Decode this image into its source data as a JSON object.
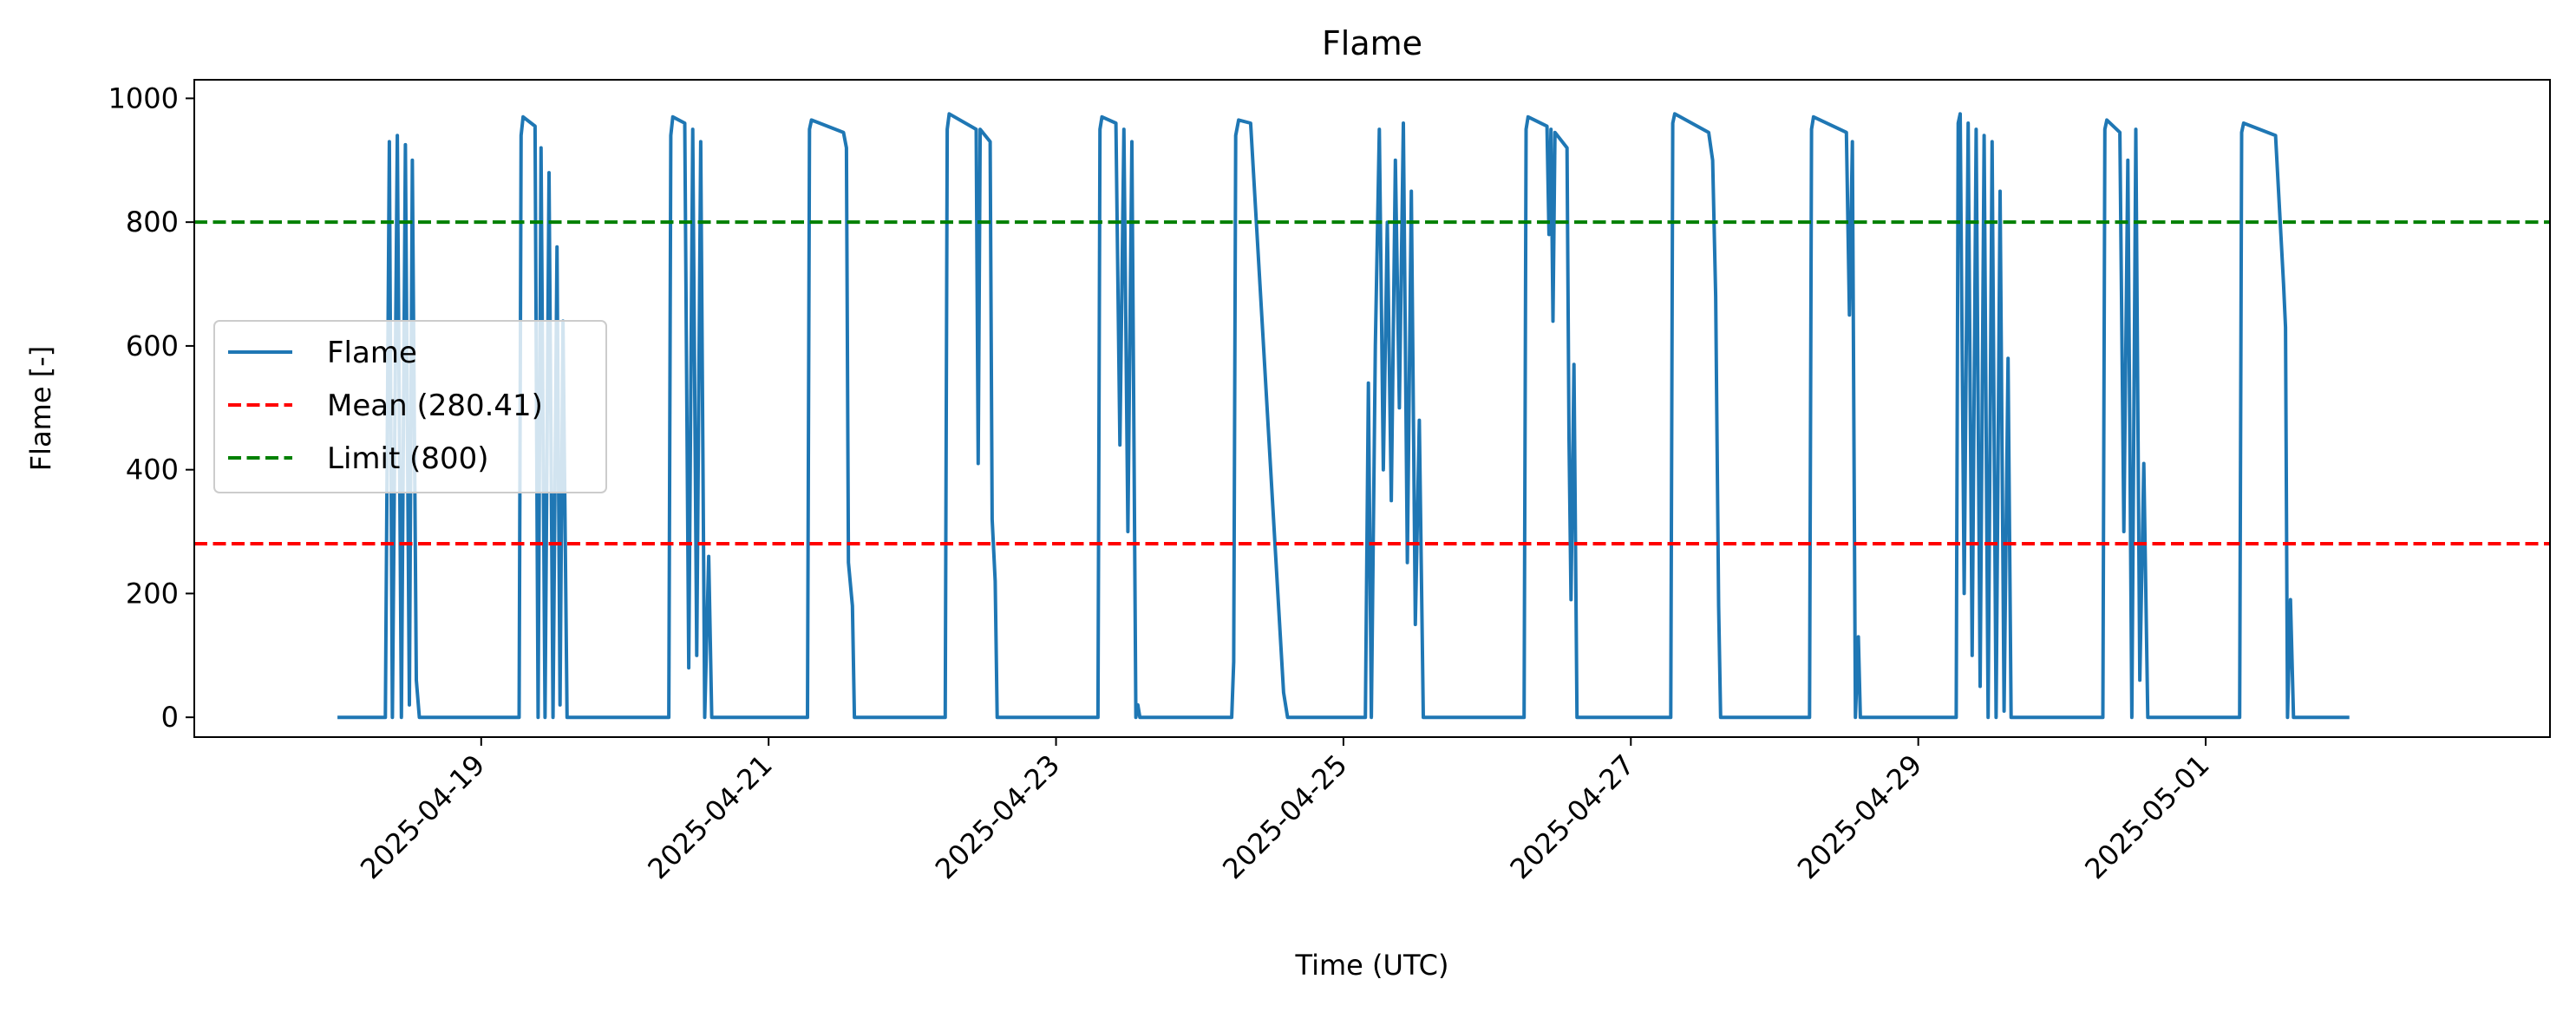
{
  "chart_data": {
    "type": "line",
    "title": "Flame",
    "xlabel": "Time (UTC)",
    "ylabel": "Flame [-]",
    "xlim": [
      "2025-04-17T00:05:00Z",
      "2025-05-03T09:30:00Z"
    ],
    "ylim": [
      -32,
      1030
    ],
    "x_ticks": [
      "2025-04-19",
      "2025-04-21",
      "2025-04-23",
      "2025-04-25",
      "2025-04-27",
      "2025-04-29",
      "2025-05-01"
    ],
    "y_ticks": [
      0,
      200,
      400,
      600,
      800,
      1000
    ],
    "grid": false,
    "legend_position": "center-left",
    "colors": {
      "flame": "#1f77b4",
      "mean": "#ff0000",
      "limit": "#008000"
    },
    "series": [
      {
        "name": "Flame",
        "style": "solid",
        "points": [
          [
            "2025-04-18T00:00:00Z",
            0
          ],
          [
            "2025-04-18T08:00:00Z",
            0
          ],
          [
            "2025-04-18T08:40:00Z",
            930
          ],
          [
            "2025-04-18T09:10:00Z",
            0
          ],
          [
            "2025-04-18T10:00:00Z",
            940
          ],
          [
            "2025-04-18T10:40:00Z",
            0
          ],
          [
            "2025-04-18T11:20:00Z",
            925
          ],
          [
            "2025-04-18T12:00:00Z",
            20
          ],
          [
            "2025-04-18T12:30:00Z",
            900
          ],
          [
            "2025-04-18T13:10:00Z",
            60
          ],
          [
            "2025-04-18T13:40:00Z",
            0
          ],
          [
            "2025-04-19T06:20:00Z",
            0
          ],
          [
            "2025-04-19T06:40:00Z",
            940
          ],
          [
            "2025-04-19T07:00:00Z",
            970
          ],
          [
            "2025-04-19T09:00:00Z",
            955
          ],
          [
            "2025-04-19T09:30:00Z",
            0
          ],
          [
            "2025-04-19T10:00:00Z",
            920
          ],
          [
            "2025-04-19T10:40:00Z",
            0
          ],
          [
            "2025-04-19T11:20:00Z",
            880
          ],
          [
            "2025-04-19T12:00:00Z",
            0
          ],
          [
            "2025-04-19T12:40:00Z",
            760
          ],
          [
            "2025-04-19T13:10:00Z",
            20
          ],
          [
            "2025-04-19T13:40:00Z",
            640
          ],
          [
            "2025-04-19T14:20:00Z",
            0
          ],
          [
            "2025-04-20T07:20:00Z",
            0
          ],
          [
            "2025-04-20T07:40:00Z",
            940
          ],
          [
            "2025-04-20T08:00:00Z",
            970
          ],
          [
            "2025-04-20T10:00:00Z",
            960
          ],
          [
            "2025-04-20T10:40:00Z",
            80
          ],
          [
            "2025-04-20T11:20:00Z",
            950
          ],
          [
            "2025-04-20T12:00:00Z",
            100
          ],
          [
            "2025-04-20T12:40:00Z",
            930
          ],
          [
            "2025-04-20T13:20:00Z",
            0
          ],
          [
            "2025-04-20T14:00:00Z",
            260
          ],
          [
            "2025-04-20T14:30:00Z",
            0
          ],
          [
            "2025-04-21T06:30:00Z",
            0
          ],
          [
            "2025-04-21T06:50:00Z",
            950
          ],
          [
            "2025-04-21T07:10:00Z",
            965
          ],
          [
            "2025-04-21T12:30:00Z",
            945
          ],
          [
            "2025-04-21T13:00:00Z",
            920
          ],
          [
            "2025-04-21T13:20:00Z",
            250
          ],
          [
            "2025-04-21T14:00:00Z",
            180
          ],
          [
            "2025-04-21T14:20:00Z",
            0
          ],
          [
            "2025-04-22T05:30:00Z",
            0
          ],
          [
            "2025-04-22T05:50:00Z",
            950
          ],
          [
            "2025-04-22T06:10:00Z",
            975
          ],
          [
            "2025-04-22T10:40:00Z",
            950
          ],
          [
            "2025-04-22T11:00:00Z",
            410
          ],
          [
            "2025-04-22T11:20:00Z",
            950
          ],
          [
            "2025-04-22T13:00:00Z",
            930
          ],
          [
            "2025-04-22T13:20:00Z",
            320
          ],
          [
            "2025-04-22T13:50:00Z",
            220
          ],
          [
            "2025-04-22T14:10:00Z",
            0
          ],
          [
            "2025-04-23T07:00:00Z",
            0
          ],
          [
            "2025-04-23T07:20:00Z",
            950
          ],
          [
            "2025-04-23T07:40:00Z",
            970
          ],
          [
            "2025-04-23T10:00:00Z",
            960
          ],
          [
            "2025-04-23T10:40:00Z",
            440
          ],
          [
            "2025-04-23T11:20:00Z",
            950
          ],
          [
            "2025-04-23T12:00:00Z",
            300
          ],
          [
            "2025-04-23T12:40:00Z",
            930
          ],
          [
            "2025-04-23T13:20:00Z",
            0
          ],
          [
            "2025-04-23T13:40:00Z",
            20
          ],
          [
            "2025-04-23T14:00:00Z",
            0
          ],
          [
            "2025-04-24T05:20:00Z",
            0
          ],
          [
            "2025-04-24T05:40:00Z",
            90
          ],
          [
            "2025-04-24T06:00:00Z",
            940
          ],
          [
            "2025-04-24T06:30:00Z",
            965
          ],
          [
            "2025-04-24T08:30:00Z",
            960
          ],
          [
            "2025-04-24T14:00:00Z",
            40
          ],
          [
            "2025-04-24T14:40:00Z",
            0
          ],
          [
            "2025-04-25T03:40:00Z",
            0
          ],
          [
            "2025-04-25T04:10:00Z",
            540
          ],
          [
            "2025-04-25T04:40:00Z",
            0
          ],
          [
            "2025-04-25T05:20:00Z",
            600
          ],
          [
            "2025-04-25T06:00:00Z",
            950
          ],
          [
            "2025-04-25T06:40:00Z",
            400
          ],
          [
            "2025-04-25T07:20:00Z",
            800
          ],
          [
            "2025-04-25T08:00:00Z",
            350
          ],
          [
            "2025-04-25T08:40:00Z",
            900
          ],
          [
            "2025-04-25T09:20:00Z",
            500
          ],
          [
            "2025-04-25T10:00:00Z",
            960
          ],
          [
            "2025-04-25T10:40:00Z",
            250
          ],
          [
            "2025-04-25T11:20:00Z",
            850
          ],
          [
            "2025-04-25T12:00:00Z",
            150
          ],
          [
            "2025-04-25T12:40:00Z",
            480
          ],
          [
            "2025-04-25T13:20:00Z",
            0
          ],
          [
            "2025-04-26T06:10:00Z",
            0
          ],
          [
            "2025-04-26T06:30:00Z",
            950
          ],
          [
            "2025-04-26T06:50:00Z",
            970
          ],
          [
            "2025-04-26T10:00:00Z",
            955
          ],
          [
            "2025-04-26T10:20:00Z",
            780
          ],
          [
            "2025-04-26T10:40:00Z",
            950
          ],
          [
            "2025-04-26T11:00:00Z",
            640
          ],
          [
            "2025-04-26T11:20:00Z",
            945
          ],
          [
            "2025-04-26T13:20:00Z",
            920
          ],
          [
            "2025-04-26T13:40:00Z",
            450
          ],
          [
            "2025-04-26T14:00:00Z",
            190
          ],
          [
            "2025-04-26T14:30:00Z",
            570
          ],
          [
            "2025-04-26T15:00:00Z",
            0
          ],
          [
            "2025-04-27T06:40:00Z",
            0
          ],
          [
            "2025-04-27T07:00:00Z",
            960
          ],
          [
            "2025-04-27T07:20:00Z",
            975
          ],
          [
            "2025-04-27T13:00:00Z",
            945
          ],
          [
            "2025-04-27T13:40:00Z",
            900
          ],
          [
            "2025-04-27T14:10:00Z",
            680
          ],
          [
            "2025-04-27T14:40:00Z",
            180
          ],
          [
            "2025-04-27T15:00:00Z",
            0
          ],
          [
            "2025-04-28T05:50:00Z",
            0
          ],
          [
            "2025-04-28T06:10:00Z",
            950
          ],
          [
            "2025-04-28T06:30:00Z",
            970
          ],
          [
            "2025-04-28T12:00:00Z",
            945
          ],
          [
            "2025-04-28T12:30:00Z",
            650
          ],
          [
            "2025-04-28T13:00:00Z",
            930
          ],
          [
            "2025-04-28T13:30:00Z",
            0
          ],
          [
            "2025-04-28T14:00:00Z",
            130
          ],
          [
            "2025-04-28T14:20:00Z",
            0
          ],
          [
            "2025-04-29T06:20:00Z",
            0
          ],
          [
            "2025-04-29T06:40:00Z",
            960
          ],
          [
            "2025-04-29T07:00:00Z",
            975
          ],
          [
            "2025-04-29T07:40:00Z",
            200
          ],
          [
            "2025-04-29T08:20:00Z",
            960
          ],
          [
            "2025-04-29T09:00:00Z",
            100
          ],
          [
            "2025-04-29T09:40:00Z",
            950
          ],
          [
            "2025-04-29T10:20:00Z",
            50
          ],
          [
            "2025-04-29T11:00:00Z",
            940
          ],
          [
            "2025-04-29T11:40:00Z",
            0
          ],
          [
            "2025-04-29T12:20:00Z",
            930
          ],
          [
            "2025-04-29T13:00:00Z",
            0
          ],
          [
            "2025-04-29T13:40:00Z",
            850
          ],
          [
            "2025-04-29T14:20:00Z",
            10
          ],
          [
            "2025-04-29T15:00:00Z",
            580
          ],
          [
            "2025-04-29T15:30:00Z",
            0
          ],
          [
            "2025-04-30T06:50:00Z",
            0
          ],
          [
            "2025-04-30T07:10:00Z",
            950
          ],
          [
            "2025-04-30T07:30:00Z",
            965
          ],
          [
            "2025-04-30T09:40:00Z",
            945
          ],
          [
            "2025-04-30T10:20:00Z",
            300
          ],
          [
            "2025-04-30T11:00:00Z",
            900
          ],
          [
            "2025-04-30T11:40:00Z",
            0
          ],
          [
            "2025-04-30T12:20:00Z",
            950
          ],
          [
            "2025-04-30T13:00:00Z",
            60
          ],
          [
            "2025-04-30T13:40:00Z",
            410
          ],
          [
            "2025-04-30T14:20:00Z",
            0
          ],
          [
            "2025-05-01T05:40:00Z",
            0
          ],
          [
            "2025-05-01T06:00:00Z",
            945
          ],
          [
            "2025-05-01T06:20:00Z",
            960
          ],
          [
            "2025-05-01T11:40:00Z",
            940
          ],
          [
            "2025-05-01T13:00:00Z",
            700
          ],
          [
            "2025-05-01T13:20:00Z",
            630
          ],
          [
            "2025-05-01T13:40:00Z",
            0
          ],
          [
            "2025-05-01T14:10:00Z",
            190
          ],
          [
            "2025-05-01T14:40:00Z",
            0
          ],
          [
            "2025-05-02T00:00:00Z",
            0
          ]
        ]
      },
      {
        "name": "Mean (280.41)",
        "style": "dashed",
        "y": 280.41
      },
      {
        "name": "Limit (800)",
        "style": "dashed",
        "y": 800
      }
    ]
  }
}
